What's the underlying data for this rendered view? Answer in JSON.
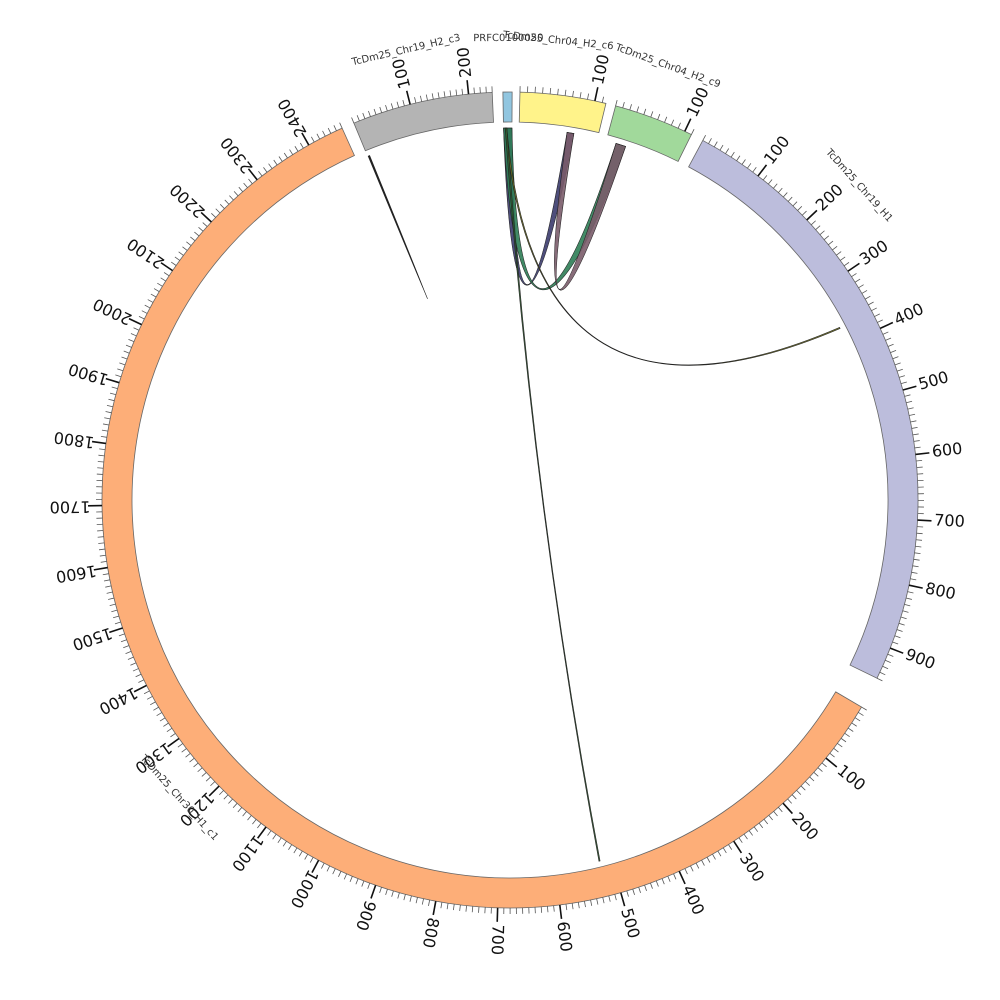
{
  "chart_data": {
    "type": "circos",
    "segments": [
      {
        "id": "PRFC0100050",
        "label": "PRFC0100050",
        "start_deg": -1.0,
        "end_deg": 0.3,
        "color": "#91c6e0",
        "length": 5,
        "major": 100
      },
      {
        "id": "TcDm25_Chr04_H2_c6",
        "label": "TcDm25_Chr04_H2_c6",
        "start_deg": 1.4,
        "end_deg": 13.6,
        "color": "#fff38a",
        "length": 115,
        "major": 100
      },
      {
        "id": "TcDm25_Chr04_H2_c9",
        "label": "TcDm25_Chr04_H2_c9",
        "start_deg": 15.0,
        "end_deg": 26.4,
        "color": "#a1d99b",
        "length": 110,
        "major": 100
      },
      {
        "id": "TcDm25_Chr19_H1",
        "label": "TcDm25_Chr19_H1",
        "start_deg": 28.2,
        "end_deg": 115.9,
        "color": "#bcbddc",
        "length": 950,
        "major": 100
      },
      {
        "id": "TcDm25_Chr30_H1_c1",
        "label": "TcDm25_Chr30_H1_c1",
        "start_deg": 120.5,
        "end_deg": 335.7,
        "color": "#fdae78",
        "length": 2460,
        "major": 100
      },
      {
        "id": "TcDm25_Chr19_H2_c3",
        "label": "TcDm25_Chr19_H2_c3",
        "start_deg": 337.5,
        "end_deg": 357.5,
        "color": "#b4b4b4",
        "length": 240,
        "major": 100
      }
    ],
    "tick_labels": [
      {
        "segment": "TcDm25_Chr04_H2_c6",
        "values": [
          "100"
        ]
      },
      {
        "segment": "TcDm25_Chr04_H2_c9",
        "values": [
          "100"
        ]
      },
      {
        "segment": "TcDm25_Chr19_H1",
        "values": [
          "100",
          "200",
          "300",
          "400",
          "500",
          "600",
          "700",
          "800",
          "900"
        ]
      },
      {
        "segment": "TcDm25_Chr30_H1_c1",
        "values": [
          "100",
          "200",
          "300",
          "400",
          "500",
          "600",
          "700",
          "800",
          "900",
          "1000",
          "1100",
          "1200",
          "1300",
          "1400",
          "1500",
          "1600",
          "1700",
          "1800",
          "1900",
          "2000",
          "2100",
          "2200",
          "2300",
          "2400"
        ]
      },
      {
        "segment": "TcDm25_Chr19_H2_c3",
        "values": [
          "100",
          "200"
        ]
      }
    ],
    "links": [
      {
        "from": "TcDm25_Chr19_H2_c3",
        "from_pos": [
          1,
          3
        ],
        "to": "TcDm25_Chr19_H2_c3",
        "to_pos": [
          2,
          4
        ],
        "color": "#555555"
      },
      {
        "from": "PRFC0100050",
        "from_pos": [
          0,
          5
        ],
        "to": "TcDm25_Chr04_H2_c6",
        "to_pos": [
          70,
          80
        ],
        "color": "#3b3b6d"
      },
      {
        "from": "PRFC0100050",
        "from_pos": [
          0,
          5
        ],
        "to": "TcDm25_Chr04_H2_c9",
        "to_pos": [
          15,
          30
        ],
        "color": "#2e7d55"
      },
      {
        "from": "PRFC0100050",
        "from_pos": [
          1,
          2
        ],
        "to": "TcDm25_Chr19_H1",
        "to_pos": [
          370,
          372
        ],
        "color": "#6b6b1e"
      },
      {
        "from": "PRFC0100050",
        "from_pos": [
          1,
          2
        ],
        "to": "TcDm25_Chr30_H1_c1",
        "to_pos": [
          520,
          522
        ],
        "color": "#2e5f2e"
      },
      {
        "from": "TcDm25_Chr04_H2_c6",
        "from_pos": [
          70,
          80
        ],
        "to": "TcDm25_Chr04_H2_c9",
        "to_pos": [
          15,
          30
        ],
        "color": "#7a5c6a"
      }
    ]
  }
}
